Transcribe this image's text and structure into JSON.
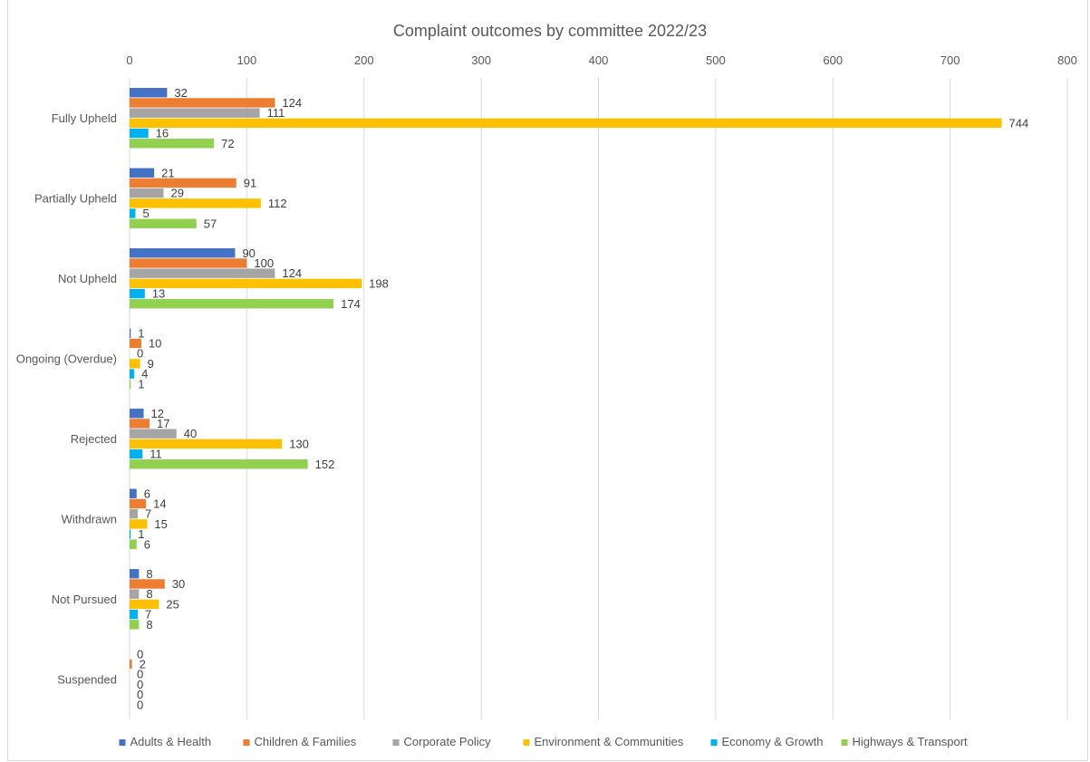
{
  "chart_data": {
    "type": "bar",
    "orientation": "horizontal",
    "title": "Complaint outcomes by committee 2022/23",
    "xlim": [
      0,
      800
    ],
    "x_ticks": [
      0,
      100,
      200,
      300,
      400,
      500,
      600,
      700,
      800
    ],
    "x_axis_position": "top",
    "grid": true,
    "legend_position": "bottom",
    "categories": [
      "Fully Upheld",
      "Partially Upheld",
      "Not Upheld",
      "Ongoing (Overdue)",
      "Rejected",
      "Withdrawn",
      "Not Pursued",
      "Suspended"
    ],
    "series": [
      {
        "name": "Adults & Health",
        "color": "#4472c4",
        "values": [
          32,
          21,
          90,
          1,
          12,
          6,
          8,
          0
        ]
      },
      {
        "name": "Children & Families",
        "color": "#ed7d31",
        "values": [
          124,
          91,
          100,
          10,
          17,
          14,
          30,
          2
        ]
      },
      {
        "name": "Corporate Policy",
        "color": "#a5a5a5",
        "values": [
          111,
          29,
          124,
          0,
          40,
          7,
          8,
          0
        ]
      },
      {
        "name": "Environment & Communities",
        "color": "#ffc000",
        "values": [
          744,
          112,
          198,
          9,
          130,
          15,
          25,
          0
        ]
      },
      {
        "name": "Economy & Growth",
        "color": "#00b0f0",
        "values": [
          16,
          5,
          13,
          4,
          11,
          1,
          7,
          0
        ]
      },
      {
        "name": "Highways & Transport",
        "color": "#92d050",
        "values": [
          72,
          57,
          174,
          1,
          152,
          6,
          8,
          0
        ]
      }
    ]
  }
}
